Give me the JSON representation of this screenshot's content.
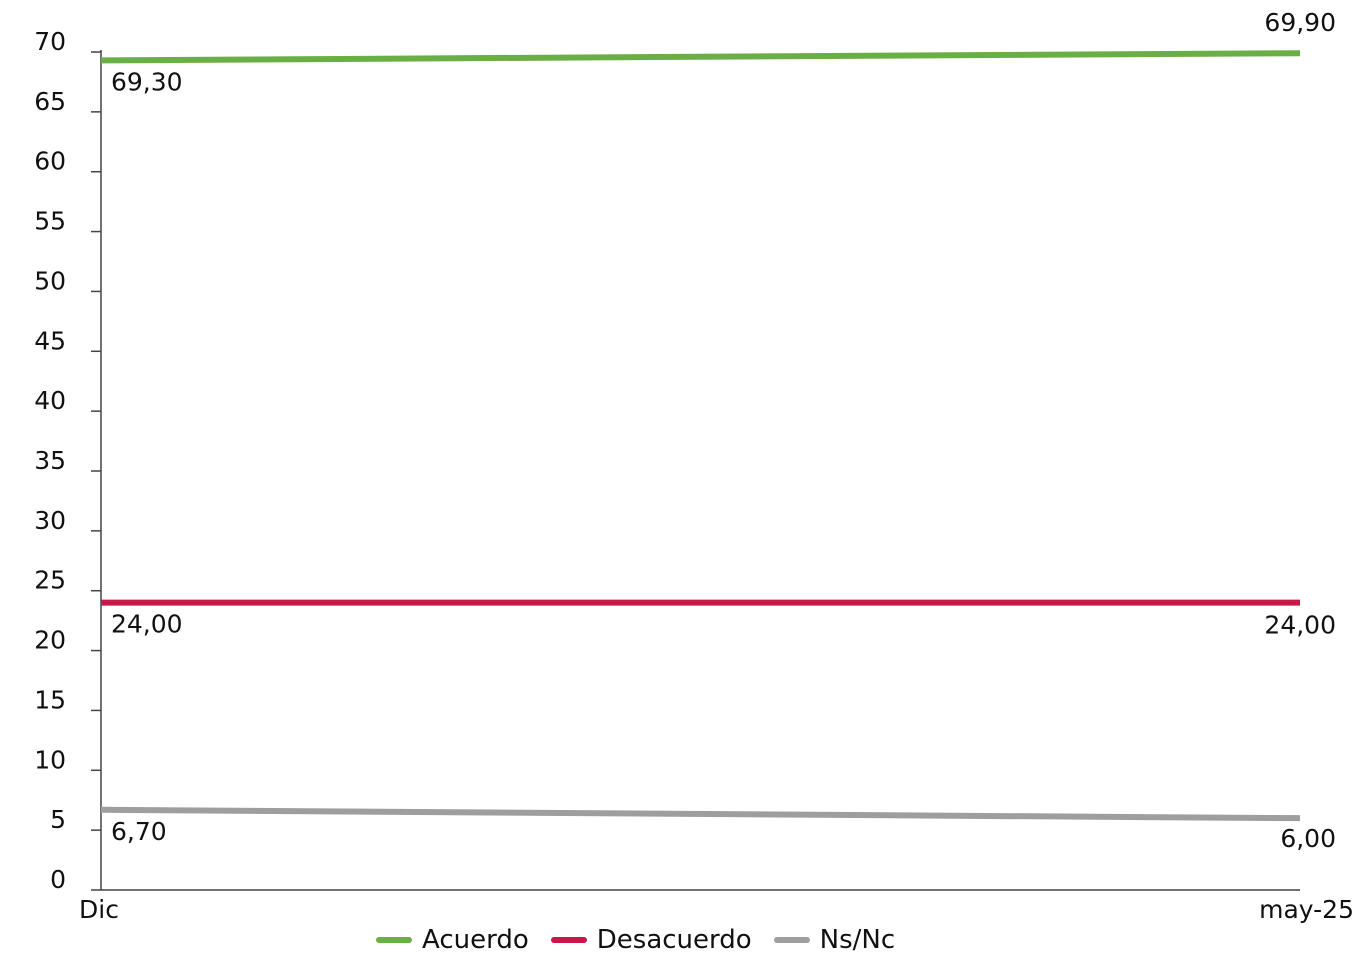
{
  "chart_data": {
    "type": "line",
    "categories": [
      "Dic",
      "may-25"
    ],
    "series": [
      {
        "name": "Acuerdo",
        "values": [
          69.3,
          69.9
        ],
        "labels": [
          "69,30",
          "69,90"
        ],
        "color": "#6aaf45"
      },
      {
        "name": "Desacuerdo",
        "values": [
          24.0,
          24.0
        ],
        "labels": [
          "24,00",
          "24,00"
        ],
        "color": "#c8184a"
      },
      {
        "name": "Ns/Nc",
        "values": [
          6.7,
          6.0
        ],
        "labels": [
          "6,70",
          "6,00"
        ],
        "color": "#9e9e9e"
      }
    ],
    "ylim": [
      0,
      70
    ],
    "yticks": [
      "0",
      "5",
      "10",
      "15",
      "20",
      "25",
      "30",
      "35",
      "40",
      "45",
      "50",
      "55",
      "60",
      "65",
      "70"
    ],
    "grid": false,
    "legend_position": "bottom"
  }
}
